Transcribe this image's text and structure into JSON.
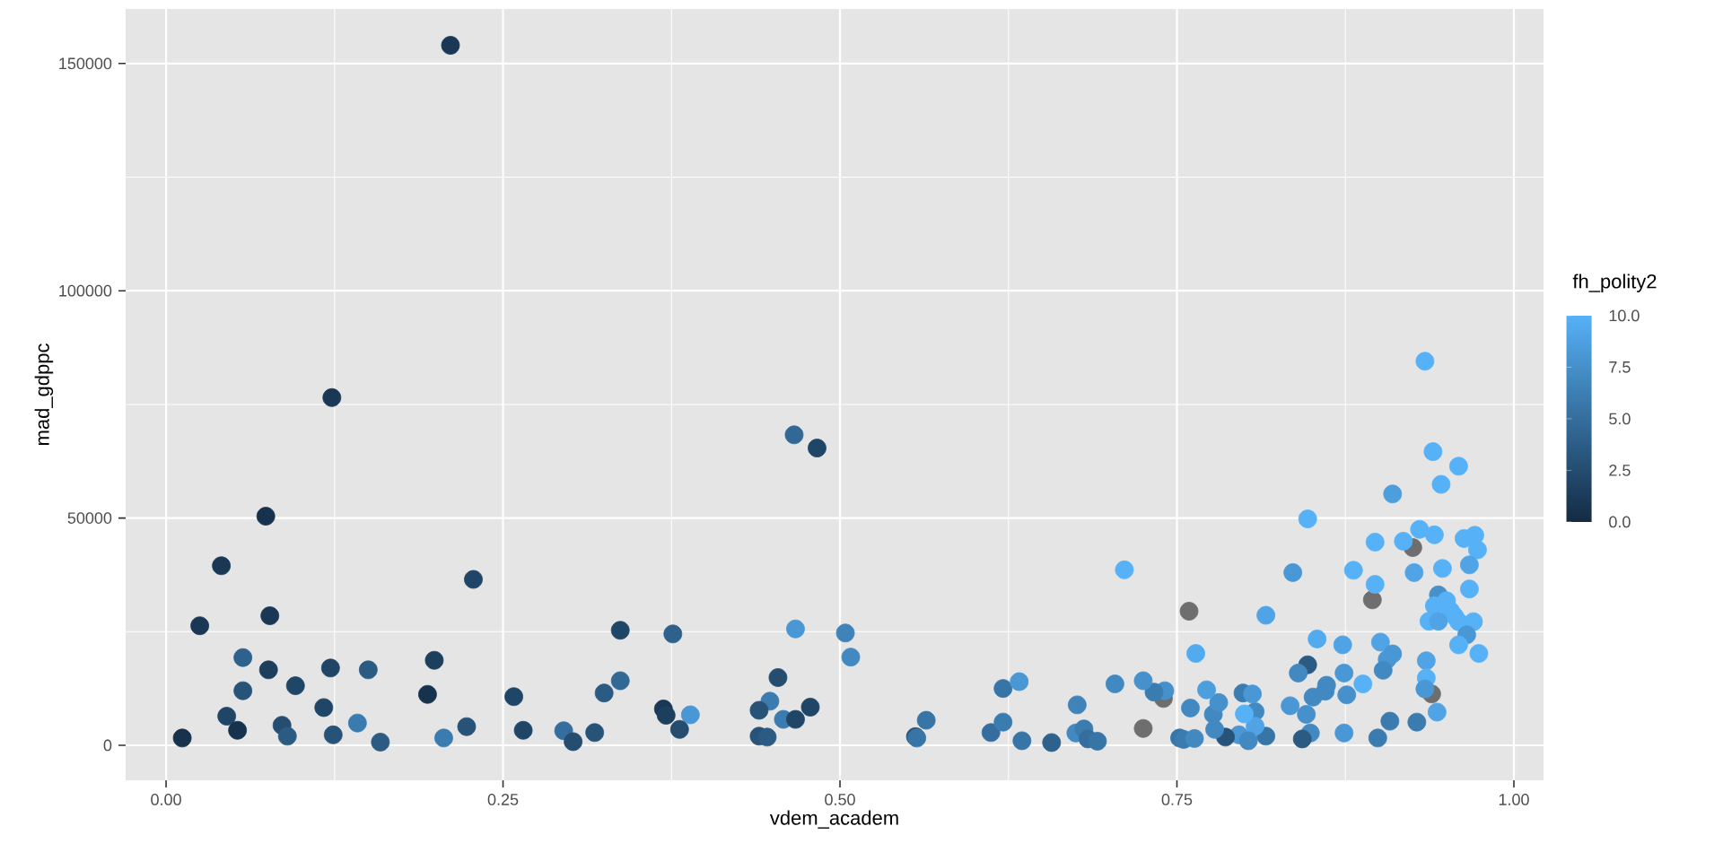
{
  "chart_data": {
    "type": "scatter",
    "xlabel": "vdem_academ",
    "ylabel": "mad_gdppc",
    "clabel": "fh_polity2",
    "x": [
      0.012,
      0.025,
      0.041,
      0.074,
      0.123,
      0.211,
      0.077,
      0.057,
      0.076,
      0.096,
      0.057,
      0.122,
      0.15,
      0.117,
      0.045,
      0.053,
      0.086,
      0.09,
      0.124,
      0.142,
      0.159,
      0.199,
      0.194,
      0.228,
      0.206,
      0.223,
      0.258,
      0.265,
      0.295,
      0.302,
      0.318,
      0.325,
      0.337,
      0.337,
      0.376,
      0.466,
      0.483,
      0.467,
      0.504,
      0.508,
      0.454,
      0.448,
      0.44,
      0.458,
      0.467,
      0.478,
      0.44,
      0.446,
      0.369,
      0.371,
      0.389,
      0.381,
      0.556,
      0.564,
      0.557,
      0.621,
      0.633,
      0.612,
      0.621,
      0.635,
      0.657,
      0.676,
      0.675,
      0.681,
      0.684,
      0.691,
      0.704,
      0.711,
      0.934,
      0.94,
      0.959,
      0.946,
      0.91,
      0.847,
      0.93,
      0.941,
      0.897,
      0.918,
      0.925,
      0.963,
      0.971,
      0.973,
      0.836,
      0.881,
      0.926,
      0.947,
      0.967,
      0.897,
      0.895,
      0.967,
      0.944,
      0.95,
      0.941,
      0.953,
      0.956,
      0.937,
      0.944,
      0.959,
      0.97,
      0.965,
      0.959,
      0.974,
      0.759,
      0.816,
      0.764,
      0.854,
      0.873,
      0.901,
      0.91,
      0.906,
      0.903,
      0.935,
      0.935,
      0.934,
      0.939,
      0.943,
      0.928,
      0.908,
      0.899,
      0.874,
      0.847,
      0.84,
      0.874,
      0.888,
      0.876,
      0.861,
      0.86,
      0.851,
      0.834,
      0.846,
      0.849,
      0.843,
      0.816,
      0.808,
      0.808,
      0.8,
      0.799,
      0.806,
      0.796,
      0.803,
      0.786,
      0.778,
      0.777,
      0.781,
      0.772,
      0.76,
      0.74,
      0.741,
      0.733,
      0.725,
      0.725,
      0.752,
      0.755,
      0.763
    ],
    "values": [
      1600,
      26300,
      39500,
      50400,
      76500,
      154000,
      28500,
      19300,
      16600,
      13100,
      12000,
      17000,
      16600,
      8300,
      6400,
      3300,
      4400,
      2000,
      2300,
      4900,
      700,
      18700,
      11200,
      36500,
      1600,
      4100,
      10700,
      3300,
      3200,
      800,
      2800,
      11500,
      14200,
      25300,
      24500,
      68300,
      65400,
      25600,
      24700,
      19400,
      14900,
      9700,
      7700,
      5700,
      5700,
      8400,
      2000,
      1800,
      8000,
      6600,
      6700,
      3500,
      1900,
      5500,
      1600,
      12500,
      14000,
      2800,
      5100,
      1000,
      600,
      8900,
      2700,
      3600,
      1400,
      900,
      13500,
      38600,
      84500,
      64600,
      61400,
      57400,
      55300,
      49800,
      47500,
      46300,
      44700,
      44900,
      43500,
      45500,
      46200,
      43000,
      38000,
      38500,
      38000,
      38900,
      39700,
      35400,
      32000,
      34400,
      33100,
      31800,
      30700,
      29600,
      28400,
      27300,
      27300,
      27200,
      27200,
      24300,
      22100,
      20200,
      29500,
      28600,
      20200,
      23400,
      22100,
      22700,
      20100,
      18900,
      16500,
      18600,
      14800,
      12400,
      11300,
      7300,
      5100,
      5300,
      1600,
      2700,
      17700,
      15900,
      15900,
      13500,
      11100,
      13200,
      11900,
      10600,
      8700,
      6800,
      2700,
      1400,
      2000,
      7400,
      4200,
      6900,
      11500,
      11300,
      2300,
      1000,
      1800,
      3500,
      6800,
      9400,
      12200,
      8200,
      10300,
      12000,
      11700,
      14200,
      3700,
      1600,
      1300,
      1500
    ],
    "cvalues": [
      0.5,
      1,
      1,
      0.5,
      1,
      1,
      1,
      4,
      1.5,
      2,
      3,
      2,
      3.5,
      2,
      2,
      0.5,
      2.5,
      3.5,
      3,
      6,
      3.5,
      1.5,
      0.5,
      2,
      6,
      3,
      2,
      2,
      5,
      2.5,
      3,
      3.5,
      4.5,
      2,
      4,
      4.5,
      2,
      8,
      6.5,
      7,
      2.5,
      6,
      3,
      6,
      2,
      2,
      3,
      3.5,
      1,
      1.5,
      8,
      2.5,
      3,
      5.5,
      5.5,
      5.5,
      8,
      5,
      6,
      5.5,
      4,
      6.5,
      7,
      6,
      5,
      5.5,
      7,
      10,
      10,
      10,
      10,
      10,
      8.5,
      10,
      10,
      10,
      10,
      10,
      null,
      10,
      10,
      10,
      8,
      10,
      9,
      10,
      9,
      10,
      null,
      10,
      7.5,
      10,
      10,
      10,
      10,
      10,
      9,
      10,
      10,
      8,
      10,
      10,
      null,
      9,
      9.5,
      9.5,
      9,
      9,
      8,
      8,
      7,
      9,
      10,
      8,
      null,
      9,
      6,
      6,
      6,
      8,
      3.5,
      7,
      8,
      10,
      7.5,
      7,
      7,
      7,
      8,
      7.5,
      7,
      3.5,
      5.5,
      7,
      9,
      10,
      6,
      8,
      8,
      7,
      3,
      7,
      7,
      7.5,
      8.5,
      7,
      null,
      7.5,
      6,
      7.5,
      null,
      5.5,
      6,
      7
    ],
    "xlim": [
      -0.03,
      1.022
    ],
    "ylim": [
      -7700,
      162000
    ],
    "xticks": [
      {
        "value": 0,
        "label": "0.00"
      },
      {
        "value": 0.25,
        "label": "0.25"
      },
      {
        "value": 0.5,
        "label": "0.50"
      },
      {
        "value": 0.75,
        "label": "0.75"
      },
      {
        "value": 1,
        "label": "1.00"
      }
    ],
    "yticks": [
      0,
      50000,
      100000,
      150000
    ],
    "clim": [
      0,
      10
    ],
    "cticks": [
      {
        "value": 0,
        "label": "0.0"
      },
      {
        "value": 2.5,
        "label": "2.5"
      },
      {
        "value": 5,
        "label": "5.0"
      },
      {
        "value": 7.5,
        "label": "7.5"
      },
      {
        "value": 10,
        "label": "10.0"
      }
    ],
    "grid": true,
    "marker": "circle"
  }
}
